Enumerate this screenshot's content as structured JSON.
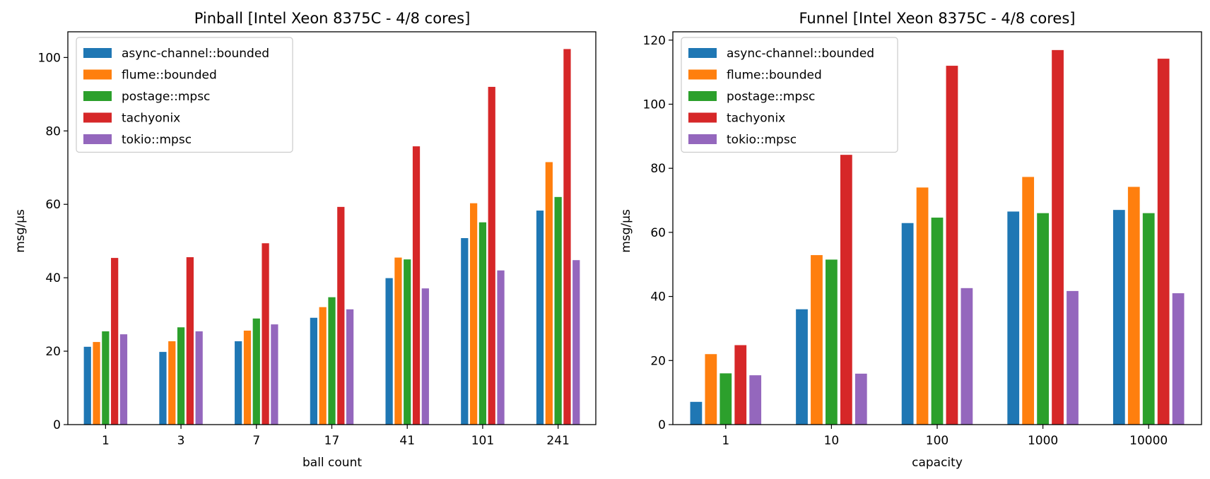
{
  "colors": {
    "async-channel::bounded": "#1f77b4",
    "flume::bounded": "#ff7f0e",
    "postage::mpsc": "#2ca02c",
    "tachyonix": "#d62728",
    "tokio::mpsc": "#9467bd"
  },
  "chart_data": [
    {
      "type": "bar",
      "title": "Pinball [Intel Xeon 8375C - 4/8 cores]",
      "xlabel": "ball count",
      "ylabel": "msg/µs",
      "ylim": [
        0,
        107
      ],
      "yticks": [
        0,
        20,
        40,
        60,
        80,
        100
      ],
      "grid": false,
      "legend_position": "top-left",
      "categories": [
        "1",
        "3",
        "7",
        "17",
        "41",
        "101",
        "241"
      ],
      "series": [
        {
          "name": "async-channel::bounded",
          "values": [
            21.2,
            19.8,
            22.7,
            29.1,
            39.9,
            50.8,
            58.3
          ]
        },
        {
          "name": "flume::bounded",
          "values": [
            22.5,
            22.7,
            25.6,
            32.0,
            45.5,
            60.3,
            71.5
          ]
        },
        {
          "name": "postage::mpsc",
          "values": [
            25.4,
            26.5,
            28.9,
            34.7,
            45.0,
            55.1,
            62.0
          ]
        },
        {
          "name": "tachyonix",
          "values": [
            45.4,
            45.6,
            49.4,
            59.3,
            75.8,
            92.0,
            102.3
          ]
        },
        {
          "name": "tokio::mpsc",
          "values": [
            24.6,
            25.4,
            27.3,
            31.4,
            37.1,
            42.0,
            44.8
          ]
        }
      ]
    },
    {
      "type": "bar",
      "title": "Funnel [Intel Xeon 8375C - 4/8 cores]",
      "xlabel": "capacity",
      "ylabel": "msg/µs",
      "ylim": [
        0,
        122.6
      ],
      "yticks": [
        0,
        20,
        40,
        60,
        80,
        100,
        120
      ],
      "grid": false,
      "legend_position": "top-left",
      "categories": [
        "1",
        "10",
        "100",
        "1000",
        "10000"
      ],
      "series": [
        {
          "name": "async-channel::bounded",
          "values": [
            7.1,
            36.0,
            62.9,
            66.5,
            67.0
          ]
        },
        {
          "name": "flume::bounded",
          "values": [
            22.0,
            52.9,
            74.0,
            77.3,
            74.2
          ]
        },
        {
          "name": "postage::mpsc",
          "values": [
            16.0,
            51.5,
            64.6,
            66.0,
            66.0
          ]
        },
        {
          "name": "tachyonix",
          "values": [
            24.8,
            84.2,
            112.0,
            116.9,
            114.2
          ]
        },
        {
          "name": "tokio::mpsc",
          "values": [
            15.4,
            15.9,
            42.6,
            41.7,
            41.0
          ]
        }
      ]
    }
  ]
}
